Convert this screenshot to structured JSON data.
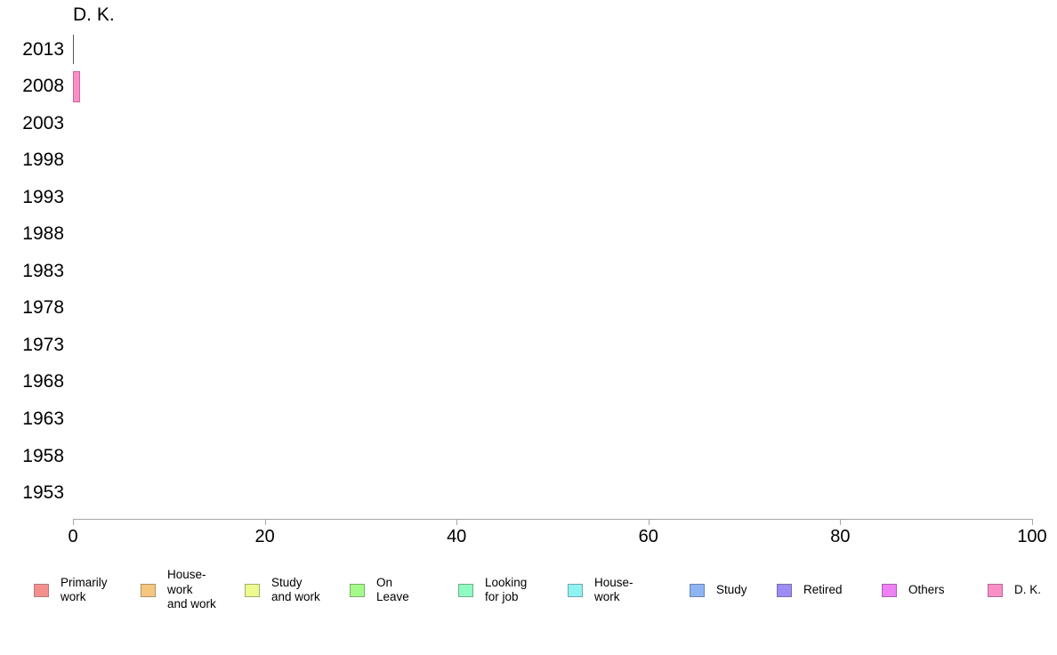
{
  "chart_data": {
    "type": "bar",
    "orientation": "horizontal",
    "title": "D. K.",
    "categories": [
      "2013",
      "2008",
      "2003",
      "1998",
      "1993",
      "1988",
      "1983",
      "1978",
      "1973",
      "1968",
      "1963",
      "1958",
      "1953"
    ],
    "values": [
      0,
      0.5,
      null,
      null,
      null,
      null,
      null,
      null,
      null,
      null,
      null,
      null,
      null
    ],
    "xlabel": "",
    "ylabel": "",
    "xlim": [
      0,
      100
    ],
    "x_ticks": [
      0,
      20,
      40,
      60,
      80,
      100
    ],
    "grid": false,
    "legend_position": "bottom",
    "axis_color": "#A6A6A6",
    "text_color": "#000000",
    "series_style": {
      "bar_fill": "#FA8FC8",
      "bar_border": "#C4679F",
      "zero_bar_line_color": "#575757"
    },
    "legend": [
      {
        "label": "Primarily work",
        "lines": [
          "Primarily",
          "work"
        ],
        "fill": "#F58F8F",
        "border": "#AB7D7D"
      },
      {
        "label": "House-work and work",
        "lines": [
          "House-",
          "work",
          "and work"
        ],
        "fill": "#F6C681",
        "border": "#AC9366"
      },
      {
        "label": "Study and work",
        "lines": [
          "Study",
          "and work"
        ],
        "fill": "#ECFA8F",
        "border": "#A4AE70"
      },
      {
        "label": "On Leave",
        "lines": [
          "On",
          "Leave"
        ],
        "fill": "#A3FA8B",
        "border": "#7CAE6E"
      },
      {
        "label": "Looking for job",
        "lines": [
          "Looking",
          "for job"
        ],
        "fill": "#8FFAC1",
        "border": "#6FAE8C"
      },
      {
        "label": "House-work",
        "lines": [
          "House-",
          "work"
        ],
        "fill": "#8FF3F3",
        "border": "#6FA9A9"
      },
      {
        "label": "Study",
        "lines": [
          "Study"
        ],
        "fill": "#8CB5F2",
        "border": "#6B87AC"
      },
      {
        "label": "Retired",
        "lines": [
          "Retired"
        ],
        "fill": "#9C8CF4",
        "border": "#756FAE"
      },
      {
        "label": "Others",
        "lines": [
          "Others"
        ],
        "fill": "#EE81F4",
        "border": "#A463AE"
      },
      {
        "label": "D. K.",
        "lines": [
          "D. K."
        ],
        "fill": "#FA8FC8",
        "border": "#AE6C93"
      }
    ]
  }
}
